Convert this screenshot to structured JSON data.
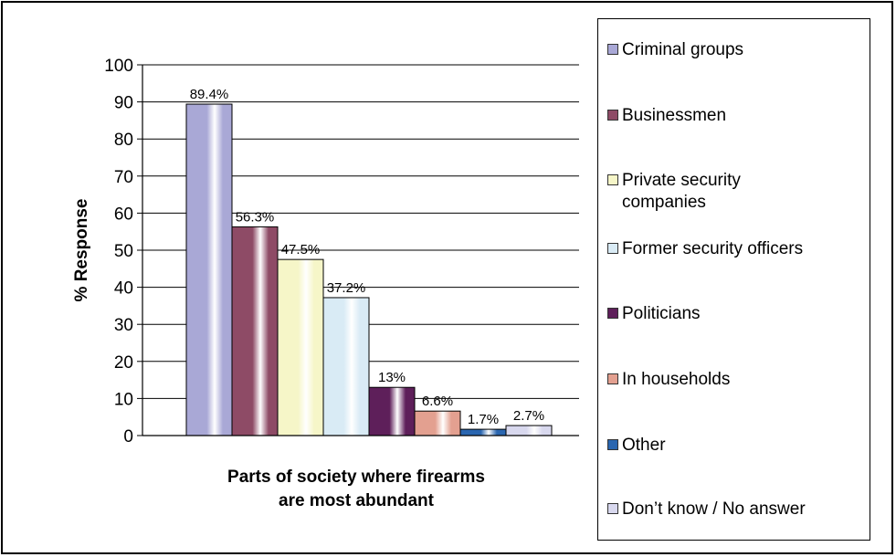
{
  "chart_data": {
    "type": "bar",
    "xlabel": "Parts of society where firearms\nare most abundant",
    "ylabel": "% Response",
    "ylim": [
      0,
      100
    ],
    "yticks": [
      0,
      10,
      20,
      30,
      40,
      50,
      60,
      70,
      80,
      90,
      100
    ],
    "grid": true,
    "legend_position": "right",
    "series": [
      {
        "name": "Criminal groups",
        "value": 89.4,
        "label": "89.4%",
        "color": "#A9A8D6"
      },
      {
        "name": "Businessmen",
        "value": 56.3,
        "label": "56.3%",
        "color": "#8E4B66"
      },
      {
        "name": "Private security companies",
        "value": 47.5,
        "label": "47.5%",
        "color": "#F6F6C8"
      },
      {
        "name": "Former security officers",
        "value": 37.2,
        "label": "37.2%",
        "color": "#D9EBF5"
      },
      {
        "name": "Politicians",
        "value": 13,
        "label": "13%",
        "color": "#5E1F5A"
      },
      {
        "name": "In households",
        "value": 6.6,
        "label": "6.6%",
        "color": "#E3A090"
      },
      {
        "name": "Other",
        "value": 1.7,
        "label": "1.7%",
        "color": "#2A66B0"
      },
      {
        "name": "Don’t know / No answer",
        "value": 2.7,
        "label": "2.7%",
        "color": "#D8D8EE"
      }
    ]
  },
  "legend": {
    "items": [
      "Criminal groups",
      "Businessmen",
      "Private security\ncompanies",
      "Former security officers",
      "Politicians",
      "In households",
      "Other",
      "Don’t know / No answer"
    ]
  }
}
